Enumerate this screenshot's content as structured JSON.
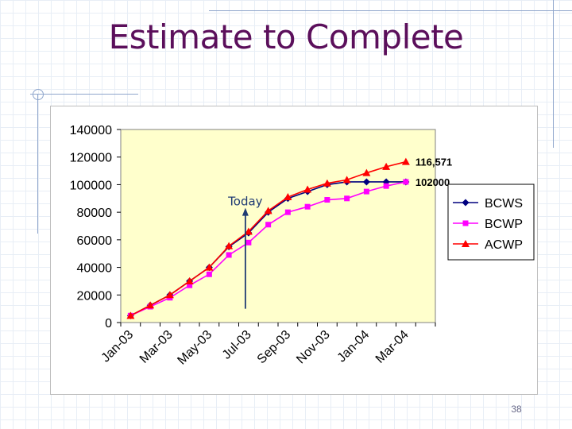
{
  "slide": {
    "title": "Estimate to Complete",
    "number": "38"
  },
  "chart_data": {
    "type": "line",
    "title": "",
    "xlabel": "",
    "ylabel": "",
    "x_index": [
      1,
      2,
      3,
      4,
      5,
      6,
      7,
      8,
      9,
      10,
      11,
      12,
      13,
      14,
      15,
      16
    ],
    "tick_labels": [
      "Jan-03",
      "Mar-03",
      "May-03",
      "Jul-03",
      "Sep-03",
      "Nov-03",
      "Jan-04",
      "Mar-04"
    ],
    "tick_at": [
      1,
      3,
      5,
      7,
      9,
      11,
      13,
      15
    ],
    "ylim": [
      0,
      140000
    ],
    "yticks": [
      0,
      20000,
      40000,
      60000,
      80000,
      100000,
      120000,
      140000
    ],
    "grid": false,
    "plot_background": "#ffffcc",
    "legend_position": "right",
    "series": [
      {
        "name": "BCWS",
        "color": "#00007f",
        "marker": "diamond",
        "values": [
          5000,
          12500,
          20000,
          30000,
          40000,
          55000,
          65000,
          80000,
          90000,
          95000,
          100000,
          102000,
          102000,
          102000,
          102000
        ]
      },
      {
        "name": "BCWP",
        "color": "#ff00ff",
        "marker": "square",
        "values": [
          5000,
          11500,
          18000,
          27000,
          35000,
          49000,
          58000,
          71000,
          80000,
          84000,
          89000,
          90000,
          95000,
          99000,
          102000
        ]
      },
      {
        "name": "ACWP",
        "color": "#ff0000",
        "marker": "triangle",
        "values": [
          5000,
          12500,
          20000,
          30000,
          40000,
          55500,
          66000,
          81000,
          91000,
          96500,
          101000,
          103500,
          108500,
          113000,
          116571
        ]
      }
    ],
    "annotations": [
      {
        "text": "Today",
        "x": 7,
        "arrow_from": 10000,
        "arrow_to": 82000
      },
      {
        "text": "116,571",
        "series": "ACWP"
      },
      {
        "text": "102000",
        "series": "BCWS"
      }
    ]
  }
}
